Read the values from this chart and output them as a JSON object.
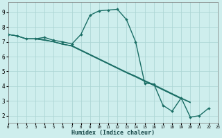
{
  "xlabel": "Humidex (Indice chaleur)",
  "bg_color": "#ceeeed",
  "grid_color": "#aad4d2",
  "line_color": "#1a6e65",
  "xlim": [
    0,
    23
  ],
  "ylim": [
    1.5,
    9.7
  ],
  "xticks": [
    0,
    1,
    2,
    3,
    4,
    5,
    6,
    7,
    8,
    9,
    10,
    11,
    12,
    13,
    14,
    15,
    16,
    17,
    18,
    19,
    20,
    21,
    22,
    23
  ],
  "yticks": [
    2,
    3,
    4,
    5,
    6,
    7,
    8,
    9
  ],
  "lines": [
    {
      "x": [
        0,
        1,
        2,
        3,
        4,
        5,
        6,
        7,
        8,
        9,
        10,
        11,
        12,
        13,
        14,
        15,
        16,
        17,
        18,
        19,
        20,
        21,
        22
      ],
      "y": [
        7.5,
        7.4,
        7.2,
        7.2,
        7.3,
        7.1,
        7.0,
        6.85,
        7.5,
        8.8,
        9.1,
        9.15,
        9.2,
        8.5,
        7.0,
        4.2,
        4.15,
        2.7,
        2.3,
        3.2,
        1.9,
        2.0,
        2.5
      ],
      "markers": true,
      "linewidth": 1.0
    },
    {
      "x": [
        0,
        1,
        2,
        3,
        4,
        5,
        6,
        7,
        8,
        9,
        10,
        11,
        12,
        13,
        14,
        15,
        16,
        17,
        18,
        19,
        20
      ],
      "y": [
        7.5,
        7.4,
        7.2,
        7.2,
        7.15,
        7.0,
        6.82,
        6.75,
        6.45,
        6.15,
        5.85,
        5.55,
        5.25,
        4.95,
        4.68,
        4.38,
        4.1,
        3.8,
        3.5,
        3.2,
        2.92
      ],
      "markers": false,
      "linewidth": 0.8
    },
    {
      "x": [
        0,
        1,
        2,
        3,
        4,
        5,
        6,
        7,
        8,
        9,
        10,
        11,
        12,
        13,
        14,
        15,
        16,
        17,
        18,
        19,
        20
      ],
      "y": [
        7.5,
        7.4,
        7.2,
        7.2,
        7.12,
        7.0,
        6.84,
        6.72,
        6.42,
        6.12,
        5.82,
        5.52,
        5.22,
        4.92,
        4.65,
        4.35,
        4.07,
        3.77,
        3.47,
        3.17,
        2.88
      ],
      "markers": false,
      "linewidth": 0.8
    },
    {
      "x": [
        0,
        1,
        2,
        3,
        4,
        5,
        6,
        7,
        8,
        9,
        10,
        11,
        12,
        13,
        14,
        15,
        16,
        17,
        18,
        19
      ],
      "y": [
        7.5,
        7.4,
        7.2,
        7.2,
        7.1,
        7.0,
        6.86,
        6.7,
        6.4,
        6.1,
        5.8,
        5.5,
        5.2,
        4.9,
        4.62,
        4.32,
        4.04,
        3.74,
        3.44,
        3.14
      ],
      "markers": false,
      "linewidth": 0.8
    }
  ]
}
